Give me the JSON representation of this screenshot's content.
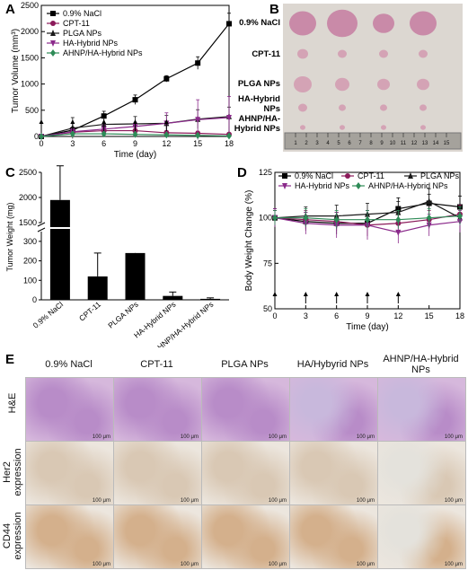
{
  "panel_labels": {
    "A": "A",
    "B": "B",
    "C": "C",
    "D": "D",
    "E": "E"
  },
  "chart_data": [
    {
      "id": "A",
      "type": "line",
      "xlabel": "Time (day)",
      "ylabel": "Tumor Volume (mm³)",
      "x": [
        0,
        3,
        6,
        9,
        12,
        15,
        18
      ],
      "xlim": [
        0,
        18
      ],
      "ylim": [
        0,
        2500
      ],
      "xticks": [
        "0",
        "3",
        "6",
        "9",
        "12",
        "15",
        "18"
      ],
      "yticks": [
        "0",
        "500",
        "1000",
        "1500",
        "2000",
        "2500"
      ],
      "legend_position": "top-left",
      "series": [
        {
          "name": "0.9% NaCl",
          "color": "#000000",
          "marker": "square",
          "values": [
            0,
            120,
            390,
            700,
            1100,
            1400,
            2150
          ],
          "err": [
            20,
            60,
            90,
            90,
            60,
            120,
            200
          ]
        },
        {
          "name": "CPT-11",
          "color": "#8b1a5a",
          "marker": "circle",
          "values": [
            0,
            80,
            110,
            110,
            70,
            60,
            40
          ],
          "err": [
            10,
            40,
            50,
            60,
            40,
            40,
            30
          ]
        },
        {
          "name": "PLGA NPs",
          "color": "#1a1a1a",
          "marker": "triangle",
          "values": [
            0,
            160,
            230,
            240,
            250,
            330,
            380
          ],
          "err": [
            20,
            200,
            120,
            140,
            150,
            180,
            180
          ]
        },
        {
          "name": "HA-Hybrid NPs",
          "color": "#8b2a8b",
          "marker": "triangle-down",
          "values": [
            0,
            90,
            140,
            190,
            250,
            320,
            360
          ],
          "err": [
            10,
            60,
            80,
            80,
            200,
            380,
            400
          ]
        },
        {
          "name": "AHNP/HA-Hybrid NPs",
          "color": "#2e8b57",
          "marker": "diamond",
          "values": [
            0,
            50,
            50,
            40,
            30,
            20,
            10
          ],
          "err": [
            10,
            30,
            30,
            20,
            20,
            15,
            10
          ]
        }
      ],
      "arrows_at": [
        0,
        3,
        6,
        9,
        12
      ]
    },
    {
      "id": "C",
      "type": "bar",
      "ylabel": "Tumor Weight (mg)",
      "categories": [
        "0.9% NaCl",
        "CPT-11",
        "PLGA NPs",
        "HA-Hybrid NPs",
        "AHNP/HA-Hybrid NPs"
      ],
      "values": [
        1950,
        120,
        240,
        20,
        5
      ],
      "err": [
        680,
        120,
        280,
        20,
        5
      ],
      "yticks": [
        "0",
        "100",
        "200",
        "300",
        "1500",
        "2000",
        "2500"
      ],
      "axis_break": [
        350,
        1500
      ]
    },
    {
      "id": "D",
      "type": "line",
      "xlabel": "Time (day)",
      "ylabel": "Body Weight Change (%)",
      "x": [
        0,
        3,
        6,
        9,
        12,
        15,
        18
      ],
      "xlim": [
        0,
        18
      ],
      "ylim": [
        50,
        125
      ],
      "xticks": [
        "0",
        "3",
        "6",
        "9",
        "12",
        "15",
        "18"
      ],
      "yticks": [
        "50",
        "75",
        "100",
        "125"
      ],
      "legend_position": "top",
      "series": [
        {
          "name": "0.9% NaCl",
          "color": "#000000",
          "marker": "square",
          "values": [
            100,
            98,
            97,
            97,
            105,
            108,
            106
          ],
          "err": [
            4,
            5,
            6,
            7,
            6,
            5,
            6
          ]
        },
        {
          "name": "CPT-11",
          "color": "#8b1a5a",
          "marker": "circle",
          "values": [
            100,
            99,
            98,
            96,
            97,
            99,
            102
          ],
          "err": [
            4,
            5,
            5,
            6,
            5,
            5,
            5
          ]
        },
        {
          "name": "PLGA NPs",
          "color": "#1a1a1a",
          "marker": "triangle",
          "values": [
            100,
            101,
            101,
            102,
            103,
            109,
            100
          ],
          "err": [
            5,
            5,
            6,
            6,
            6,
            7,
            6
          ]
        },
        {
          "name": "HA-Hybrid NPs",
          "color": "#8b2a8b",
          "marker": "triangle-down",
          "values": [
            100,
            97,
            96,
            96,
            92,
            96,
            98
          ],
          "err": [
            5,
            6,
            7,
            8,
            6,
            6,
            6
          ]
        },
        {
          "name": "AHNP/HA-Hybrid NPs",
          "color": "#2e8b57",
          "marker": "diamond",
          "values": [
            100,
            100,
            99,
            99,
            99,
            100,
            101
          ],
          "err": [
            4,
            5,
            5,
            5,
            5,
            5,
            5
          ]
        }
      ],
      "arrows_at": [
        0,
        3,
        6,
        9,
        12
      ]
    }
  ],
  "panel_b": {
    "row_labels": [
      "0.9% NaCl",
      "CPT-11",
      "PLGA NPs",
      "HA-Hybrid NPs",
      "AHNP/HA-Hybrid NPs"
    ],
    "ruler_ticks": [
      "1",
      "2",
      "3",
      "4",
      "5",
      "6",
      "7",
      "8",
      "9",
      "10",
      "11",
      "12",
      "13",
      "14",
      "15"
    ]
  },
  "panel_e": {
    "columns": [
      "0.9% NaCl",
      "CPT-11",
      "PLGA NPs",
      "HA/Hybyrid NPs",
      "AHNP/HA-Hybrid NPs"
    ],
    "rows": [
      "H&E",
      "Her2 expression",
      "CD44 expression"
    ],
    "scale": "100 μm",
    "row_colors": [
      "#b88cc8",
      "#d9c8b4",
      "#d4b08c"
    ]
  }
}
